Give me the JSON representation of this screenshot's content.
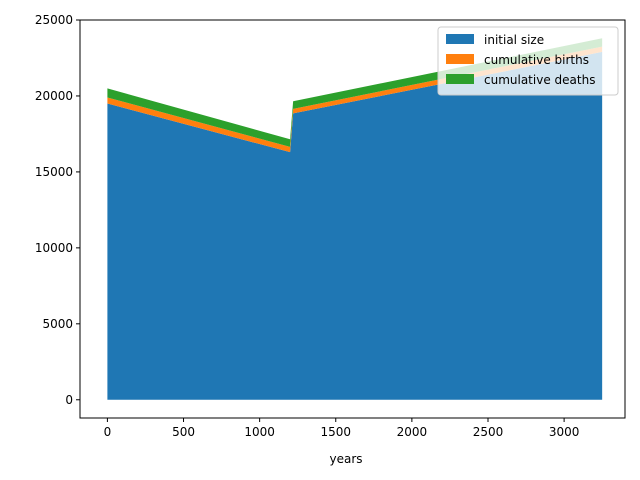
{
  "chart_data": {
    "type": "area",
    "stacked": true,
    "x": [
      0,
      1200,
      1220,
      3250
    ],
    "series": [
      {
        "name": "initial size",
        "color": "#1f77b4",
        "values": [
          19500,
          16300,
          18850,
          22900
        ]
      },
      {
        "name": "cumulative births",
        "color": "#ff7f0e",
        "values": [
          400,
          350,
          300,
          350
        ]
      },
      {
        "name": "cumulative deaths",
        "color": "#2ca02c",
        "values": [
          600,
          500,
          500,
          550
        ]
      }
    ],
    "xlabel": "years",
    "ylabel": "",
    "title": "",
    "xlim": [
      -180,
      3400
    ],
    "ylim": [
      -1200,
      25000
    ],
    "xticks": [
      0,
      500,
      1000,
      1500,
      2000,
      2500,
      3000
    ],
    "yticks": [
      0,
      5000,
      10000,
      15000,
      20000,
      25000
    ],
    "grid": false,
    "legend_position": "top-right"
  }
}
